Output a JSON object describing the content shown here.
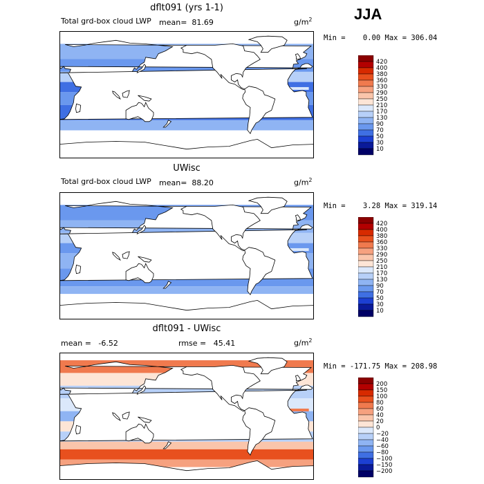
{
  "season": "JJA",
  "panels": [
    {
      "title": "dflt091 (yrs 1-1)",
      "left_label": "Total grd-box cloud LWP",
      "stat_label": "mean=",
      "stat_value": "81.69",
      "unit_base": "g/m",
      "unit_exp": "2",
      "minmax": "Min =    0.00 Max = 306.04",
      "legend": [
        "420",
        "400",
        "380",
        "360",
        "330",
        "290",
        "250",
        "210",
        "170",
        "130",
        "90",
        "70",
        "50",
        "30",
        "10"
      ],
      "colors": [
        "#8b0000",
        "#b30000",
        "#d72a00",
        "#e8501e",
        "#f07a4e",
        "#f6a17f",
        "#fac5ab",
        "#fde5d6",
        "#dbe8fb",
        "#b7d0f8",
        "#8fb4f3",
        "#6a98ee",
        "#3f6fe3",
        "#1c3fd2",
        "#0a1a99",
        "#000066"
      ]
    },
    {
      "title": "UWisc",
      "left_label": "Total grd-box cloud LWP",
      "stat_label": "mean=",
      "stat_value": "88.20",
      "unit_base": "g/m",
      "unit_exp": "2",
      "minmax": "Min =    3.28 Max = 319.14",
      "legend": [
        "420",
        "400",
        "380",
        "360",
        "330",
        "290",
        "250",
        "210",
        "170",
        "130",
        "90",
        "70",
        "50",
        "30",
        "10"
      ],
      "colors": [
        "#8b0000",
        "#b30000",
        "#d72a00",
        "#e8501e",
        "#f07a4e",
        "#f6a17f",
        "#fac5ab",
        "#fde5d6",
        "#dbe8fb",
        "#b7d0f8",
        "#8fb4f3",
        "#6a98ee",
        "#3f6fe3",
        "#1c3fd2",
        "#0a1a99",
        "#000066"
      ]
    },
    {
      "title": "dflt091 - UWisc",
      "left_label": "mean =   -6.52",
      "stat_label": "rmse =",
      "stat_value": "45.41",
      "unit_base": "g/m",
      "unit_exp": "2",
      "minmax": "Min = -171.75 Max = 208.98",
      "legend": [
        "200",
        "150",
        "100",
        "80",
        "60",
        "40",
        "20",
        "0",
        "−20",
        "−40",
        "−60",
        "−80",
        "−100",
        "−150",
        "−200"
      ],
      "colors": [
        "#8b0000",
        "#b30000",
        "#d72a00",
        "#e8501e",
        "#f07a4e",
        "#f6a17f",
        "#fac5ab",
        "#fde5d6",
        "#dbe8fb",
        "#b7d0f8",
        "#8fb4f3",
        "#6a98ee",
        "#3f6fe3",
        "#1c3fd2",
        "#0a1a99",
        "#000066"
      ]
    }
  ]
}
